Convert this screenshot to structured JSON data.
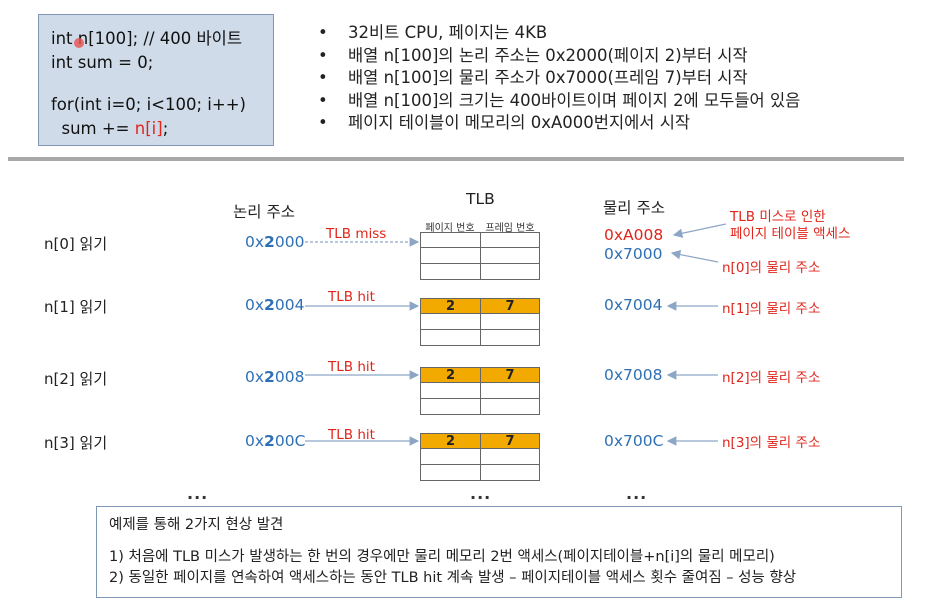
{
  "code": {
    "line1_pre": "int n[100]; // 400 바이트",
    "line2": "int sum = 0;",
    "line3": "for(int i=0; i<100; i++)",
    "line4_pre": "  sum += ",
    "line4_red": "n[i]",
    "line4_post": ";"
  },
  "facts": [
    "32비트 CPU, 페이지는 4KB",
    "배열 n[100]의 논리 주소는 0x2000(페이지 2)부터 시작",
    "배열 n[100]의 물리 주소가 0x7000(프레임 7)부터 시작",
    "배열 n[100]의 크기는 400바이트이며 페이지 2에 모두들어 있음",
    "페이지 테이블이 메모리의 0xA000번지에서 시작"
  ],
  "bullet": "•",
  "headers": {
    "logical": "논리 주소",
    "tlb": "TLB",
    "physical": "물리 주소",
    "tlb_col_page": "페이지 번호",
    "tlb_col_frame": "프레임 번호"
  },
  "rows": [
    {
      "label": "n[0] 읽기",
      "addr_pre": "0x",
      "addr_bold": "2",
      "addr_post": "000",
      "event": "TLB miss",
      "phys_red": "0xA008",
      "phys": "0x7000",
      "note": "n[0]의 물리 주소",
      "hit_page": "",
      "hit_frame": ""
    },
    {
      "label": "n[1] 읽기",
      "addr_pre": "0x",
      "addr_bold": "2",
      "addr_post": "004",
      "event": "TLB hit",
      "phys": "0x7004",
      "note": "n[1]의 물리 주소",
      "hit_page": "2",
      "hit_frame": "7"
    },
    {
      "label": "n[2] 읽기",
      "addr_pre": "0x",
      "addr_bold": "2",
      "addr_post": "008",
      "event": "TLB hit",
      "phys": "0x7008",
      "note": "n[2]의 물리 주소",
      "hit_page": "2",
      "hit_frame": "7"
    },
    {
      "label": "n[3] 읽기",
      "addr_pre": "0x",
      "addr_bold": "2",
      "addr_post": "00C",
      "event": "TLB hit",
      "phys": "0x700C",
      "note": "n[3]의 물리 주소",
      "hit_page": "2",
      "hit_frame": "7"
    }
  ],
  "miss_note_line1": "TLB 미스로 인한",
  "miss_note_line2": "페이지 테이블 액세스",
  "ellipsis": "...",
  "findings": {
    "title": "예제를 통해 2가지 현상 발견",
    "item1": "1) 처음에 TLB 미스가 발생하는 한 번의 경우에만 물리 메모리 2번 액세스(페이지테이블+n[i]의 물리 메모리)",
    "item2": "2) 동일한 페이지를 연속하여 액세스하는 동안 TLB hit 계속 발생 – 페이지테이블 액세스 횟수 줄여짐 – 성능 향상"
  },
  "colors": {
    "accent_red": "#e1251b",
    "address_blue": "#2f6fb3",
    "hit_fill": "#f2a900",
    "code_bg": "#cfdbe9"
  }
}
